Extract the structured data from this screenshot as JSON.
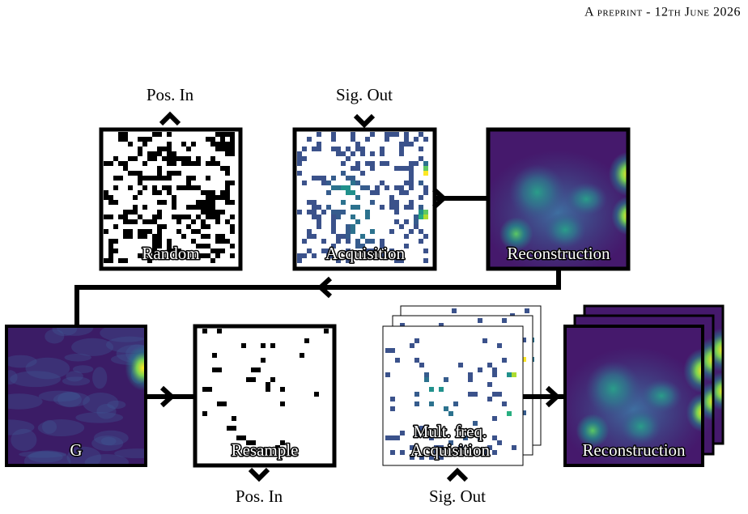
{
  "header": "A preprint - 12th June 2026",
  "figure": {
    "top_row": [
      {
        "label": "Random",
        "port": "Pos. In"
      },
      {
        "label": "Acquisition",
        "port": "Sig. Out"
      },
      {
        "label": "Reconstruction"
      }
    ],
    "bottom_row": [
      {
        "label": "G"
      },
      {
        "label": "Resample",
        "port": "Pos. In"
      },
      {
        "label": [
          "Mult. freq.",
          "Acquisition"
        ],
        "port": "Sig. Out"
      },
      {
        "label": "Reconstruction"
      }
    ]
  }
}
